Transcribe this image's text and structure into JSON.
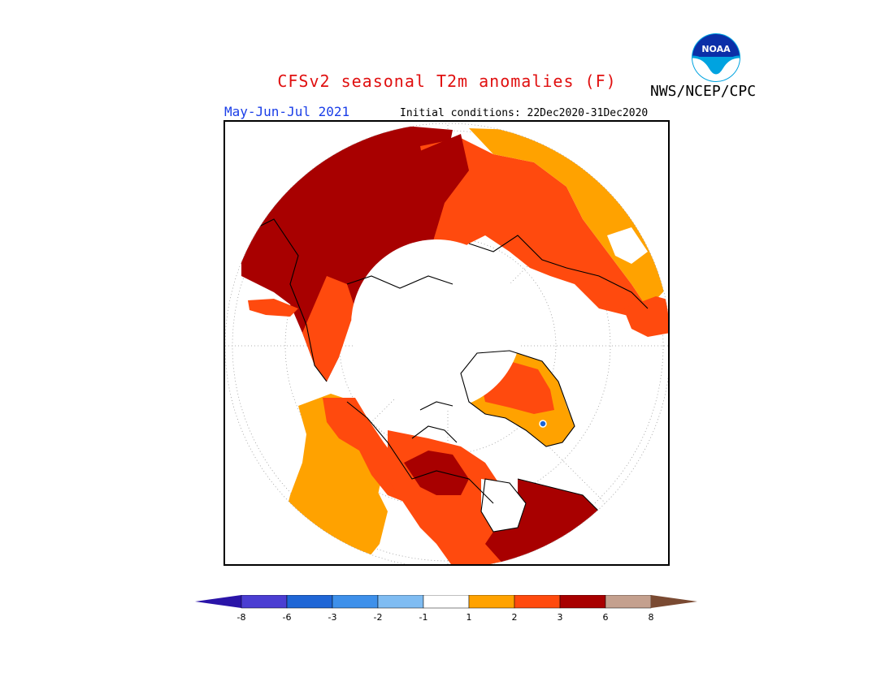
{
  "header": {
    "title": "CFSv2 seasonal T2m anomalies (F)",
    "agency": "NWS/NCEP/CPC",
    "season": "May-Jun-Jul 2021",
    "initial_conditions": "Initial conditions: 22Dec2020-31Dec2020",
    "logo_text": "NOAA"
  },
  "colorbar": {
    "labels": [
      "-8",
      "-6",
      "-3",
      "-2",
      "-1",
      "1",
      "2",
      "3",
      "6",
      "8"
    ],
    "colors": [
      "#2a14a8",
      "#4b3ed2",
      "#1f66d6",
      "#3e90ea",
      "#7fbcf2",
      "#ffffff",
      "#ffa200",
      "#ff4a0e",
      "#a80000",
      "#c4a08e",
      "#7a4a32"
    ]
  },
  "map": {
    "projection": "north-polar-stereographic",
    "palette": {
      "light_orange": "#ffa200",
      "orange_red": "#ff4a0e",
      "dark_red": "#a80000",
      "land_outline": "#000000",
      "grid": "#999999",
      "marker": "#1a63d8"
    }
  }
}
